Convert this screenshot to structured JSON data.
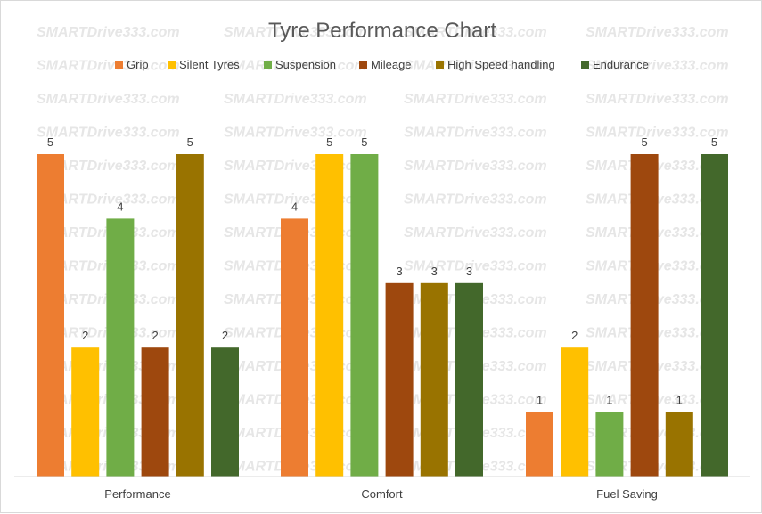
{
  "watermark": "SMARTDrive333.com",
  "chart_data": {
    "type": "bar",
    "title": "Tyre Performance Chart",
    "categories": [
      "Performance",
      "Comfort",
      "Fuel Saving"
    ],
    "series": [
      {
        "name": "Grip",
        "color": "#ED7D31",
        "values": [
          5,
          4,
          1
        ]
      },
      {
        "name": "Silent Tyres",
        "color": "#FFC000",
        "values": [
          2,
          5,
          2
        ]
      },
      {
        "name": "Suspension",
        "color": "#70AD47",
        "values": [
          4,
          5,
          1
        ]
      },
      {
        "name": "Mileage",
        "color": "#9E480E",
        "values": [
          2,
          3,
          5
        ]
      },
      {
        "name": "High Speed handling",
        "color": "#997300",
        "values": [
          5,
          3,
          1
        ]
      },
      {
        "name": "Endurance",
        "color": "#43682B",
        "values": [
          2,
          3,
          5
        ]
      }
    ],
    "ylim": [
      0,
      5.5
    ],
    "grid": false,
    "legend": "top",
    "data_labels": true
  }
}
